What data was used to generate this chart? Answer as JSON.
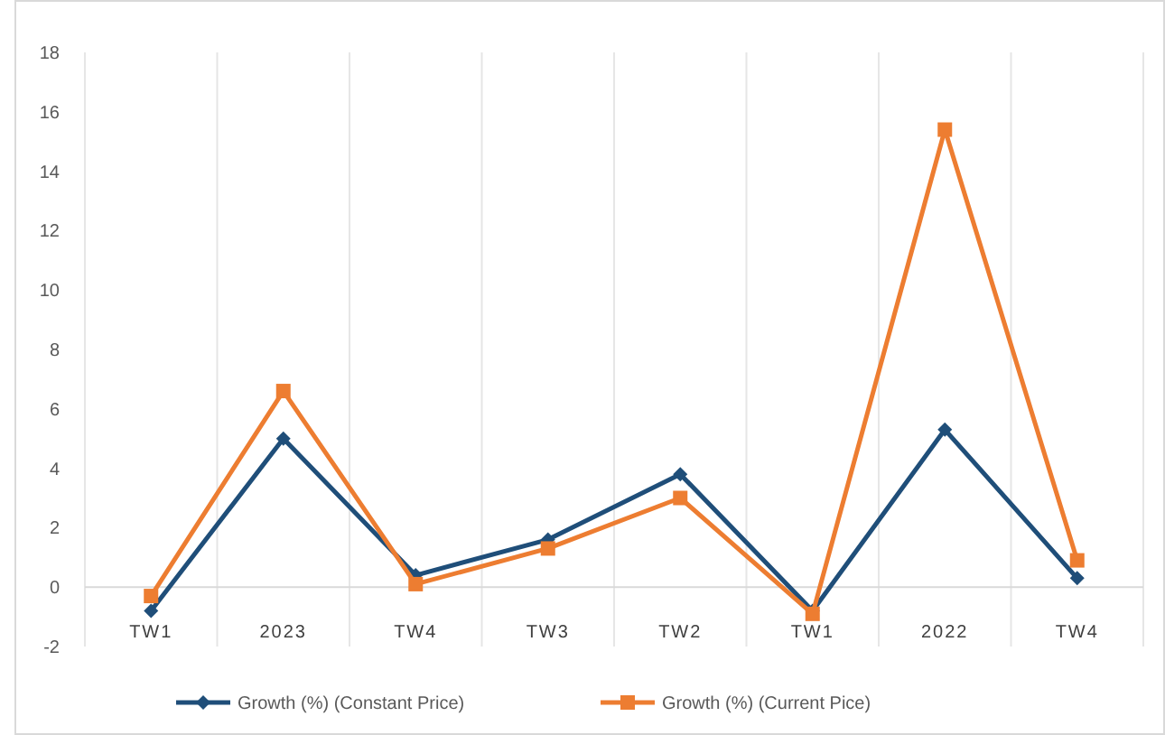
{
  "chart_data": {
    "type": "line",
    "categories": [
      "TW1",
      "2023",
      "TW4",
      "TW3",
      "TW2",
      "TW1",
      "2022",
      "TW4"
    ],
    "series": [
      {
        "name": "Growth (%) (Constant Price)",
        "color": "#1f4e79",
        "marker": "diamond",
        "values": [
          -0.8,
          5.0,
          0.4,
          1.6,
          3.8,
          -0.8,
          5.3,
          0.3
        ]
      },
      {
        "name": "Growth (%) (Current Pice)",
        "color": "#ed7d31",
        "marker": "square",
        "values": [
          -0.3,
          6.6,
          0.1,
          1.3,
          3.0,
          -0.9,
          15.4,
          0.9
        ]
      }
    ],
    "ylim": [
      -2,
      18
    ],
    "yticks": [
      -2,
      0,
      2,
      4,
      6,
      8,
      10,
      12,
      14,
      16,
      18
    ],
    "grid": "x",
    "legend": "bottom",
    "line_style": "solid"
  }
}
